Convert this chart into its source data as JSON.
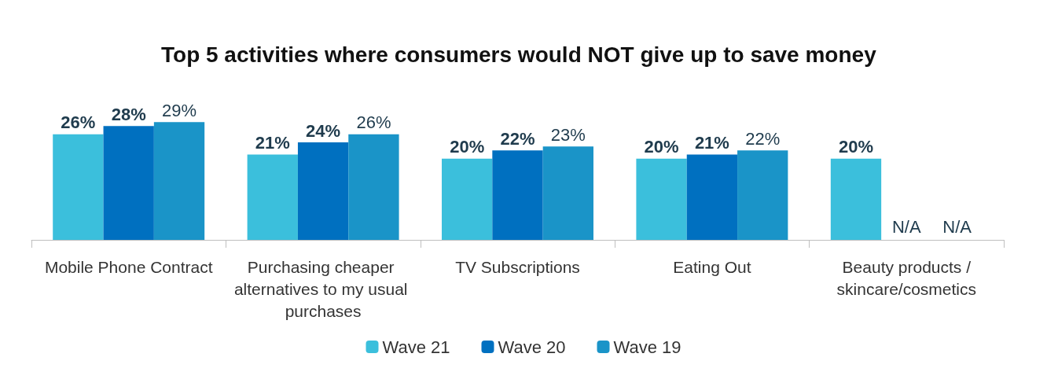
{
  "chart_data": {
    "type": "bar",
    "title": "Top 5 activities where consumers would NOT give up to save money",
    "categories": [
      "Mobile Phone Contract",
      "Purchasing cheaper alternatives to my usual purchases",
      "TV Subscriptions",
      "Eating Out",
      "Beauty products /skincare/cosmetics"
    ],
    "series": [
      {
        "name": "Wave 21",
        "color": "#3bbfdc",
        "values": [
          26,
          21,
          20,
          20,
          20
        ],
        "value_labels": [
          "26%",
          "21%",
          "20%",
          "20%",
          "20%"
        ]
      },
      {
        "name": "Wave 20",
        "color": "#0070c0",
        "values": [
          28,
          24,
          22,
          21,
          null
        ],
        "value_labels": [
          "28%",
          "24%",
          "22%",
          "21%",
          "N/A"
        ]
      },
      {
        "name": "Wave 19",
        "color": "#1a94c8",
        "values": [
          29,
          26,
          23,
          22,
          null
        ],
        "value_labels": [
          "29%",
          "26%",
          "23%",
          "22%",
          "N/A"
        ]
      }
    ],
    "legend": "bottom",
    "grid": false
  }
}
